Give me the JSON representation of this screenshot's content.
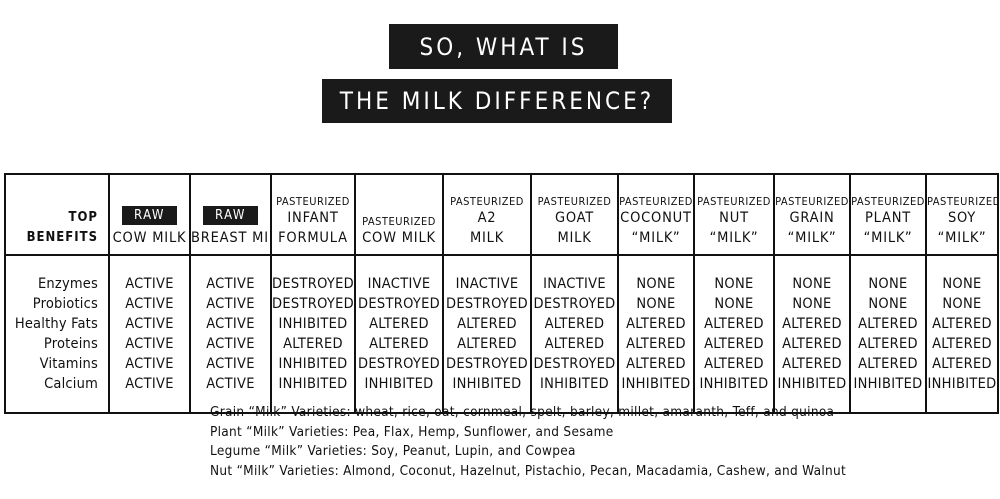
{
  "banner_line1": "SO, WHAT IS",
  "banner_line2": "THE MILK DIFFERENCE?",
  "top_benefits_label": [
    "TOP",
    "BENEFITS"
  ],
  "benefits": [
    "Enzymes",
    "Probiotics",
    "Healthy Fats",
    "Proteins",
    "Vitamins",
    "Calcium"
  ],
  "columns": [
    {
      "badge": "RAW",
      "prefix": "",
      "name_lines": [
        "COW MILK"
      ],
      "values": [
        "ACTIVE",
        "ACTIVE",
        "ACTIVE",
        "ACTIVE",
        "ACTIVE",
        "ACTIVE"
      ]
    },
    {
      "badge": "RAW",
      "prefix": "",
      "name_lines": [
        "BREAST MILK"
      ],
      "values": [
        "ACTIVE",
        "ACTIVE",
        "ACTIVE",
        "ACTIVE",
        "ACTIVE",
        "ACTIVE"
      ]
    },
    {
      "badge": "",
      "prefix": "PASTEURIZED",
      "name_lines": [
        "INFANT",
        "FORMULA"
      ],
      "values": [
        "DESTROYED",
        "DESTROYED",
        "INHIBITED",
        "ALTERED",
        "INHIBITED",
        "INHIBITED"
      ]
    },
    {
      "badge": "",
      "prefix": "PASTEURIZED",
      "name_lines": [
        "COW MILK"
      ],
      "values": [
        "INACTIVE",
        "DESTROYED",
        "ALTERED",
        "ALTERED",
        "DESTROYED",
        "INHIBITED"
      ]
    },
    {
      "badge": "",
      "prefix": "PASTEURIZED",
      "name_lines": [
        "A2",
        "MILK"
      ],
      "values": [
        "INACTIVE",
        "DESTROYED",
        "ALTERED",
        "ALTERED",
        "DESTROYED",
        "INHIBITED"
      ]
    },
    {
      "badge": "",
      "prefix": "PASTEURIZED",
      "name_lines": [
        "GOAT",
        "MILK"
      ],
      "values": [
        "INACTIVE",
        "DESTROYED",
        "ALTERED",
        "ALTERED",
        "DESTROYED",
        "INHIBITED"
      ]
    },
    {
      "badge": "",
      "prefix": "PASTEURIZED",
      "name_lines": [
        "COCONUT",
        "“MILK”"
      ],
      "values": [
        "NONE",
        "NONE",
        "ALTERED",
        "ALTERED",
        "ALTERED",
        "INHIBITED"
      ]
    },
    {
      "badge": "",
      "prefix": "PASTEURIZED",
      "name_lines": [
        "NUT",
        "“MILK”"
      ],
      "values": [
        "NONE",
        "NONE",
        "ALTERED",
        "ALTERED",
        "ALTERED",
        "INHIBITED"
      ]
    },
    {
      "badge": "",
      "prefix": "PASTEURIZED",
      "name_lines": [
        "GRAIN",
        "“MILK”"
      ],
      "values": [
        "NONE",
        "NONE",
        "ALTERED",
        "ALTERED",
        "ALTERED",
        "INHIBITED"
      ]
    },
    {
      "badge": "",
      "prefix": "PASTEURIZED",
      "name_lines": [
        "PLANT",
        "“MILK”"
      ],
      "values": [
        "NONE",
        "NONE",
        "ALTERED",
        "ALTERED",
        "ALTERED",
        "INHIBITED"
      ]
    },
    {
      "badge": "",
      "prefix": "PASTEURIZED",
      "name_lines": [
        "SOY",
        "“MILK”"
      ],
      "values": [
        "NONE",
        "NONE",
        "ALTERED",
        "ALTERED",
        "ALTERED",
        "INHIBITED"
      ]
    }
  ],
  "notes": [
    "Grain “Milk” Varieties: wheat, rice, oat, cornmeal, spelt, barley, millet, amaranth, Teff, and quinoa",
    "Plant “Milk” Varieties: Pea, Flax, Hemp, Sunflower, and Sesame",
    "Legume “Milk” Varieties: Soy, Peanut, Lupin, and Cowpea",
    "Nut “Milk” Varieties: Almond, Coconut, Hazelnut, Pistachio, Pecan, Macadamia, Cashew, and Walnut"
  ]
}
